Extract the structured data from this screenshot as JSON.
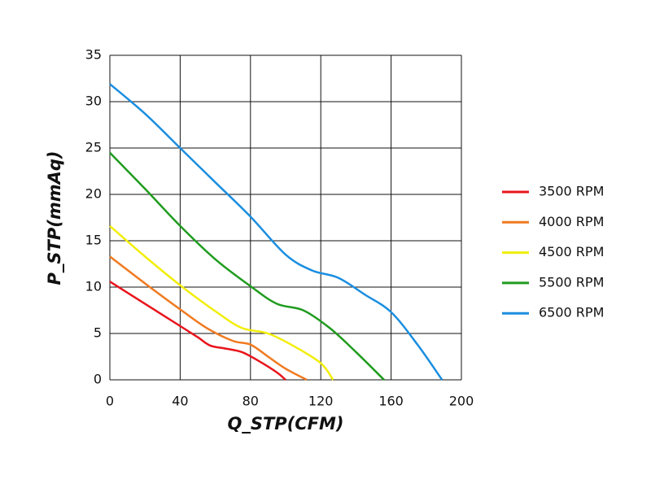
{
  "chart_data": {
    "type": "line",
    "xlabel": "Q_STP(CFM)",
    "ylabel": "P_STP(mmAq)",
    "xlim": [
      0,
      200
    ],
    "xticks": [
      0,
      40,
      80,
      120,
      160,
      200
    ],
    "ylim": [
      0,
      35
    ],
    "yticks": [
      0,
      5,
      10,
      15,
      20,
      25,
      30,
      35
    ],
    "grid": true,
    "legend": "right",
    "series": [
      {
        "name": "3500 RPM",
        "color": "#e8141c",
        "x": [
          0,
          20,
          40,
          50,
          57,
          65,
          75,
          85,
          95,
          100
        ],
        "values": [
          10.6,
          8.2,
          5.8,
          4.6,
          3.7,
          3.4,
          3.0,
          2.0,
          0.8,
          0
        ]
      },
      {
        "name": "4000 RPM",
        "color": "#f07a20",
        "x": [
          0,
          20,
          40,
          55,
          70,
          80,
          90,
          100,
          112
        ],
        "values": [
          13.3,
          10.4,
          7.6,
          5.6,
          4.2,
          3.8,
          2.5,
          1.2,
          0
        ]
      },
      {
        "name": "4500 RPM",
        "color": "#f2ee0a",
        "x": [
          0,
          20,
          40,
          60,
          75,
          90,
          105,
          120,
          127
        ],
        "values": [
          16.6,
          13.3,
          10.2,
          7.4,
          5.6,
          5.0,
          3.6,
          1.8,
          0
        ]
      },
      {
        "name": "5500 RPM",
        "color": "#1f9c1f",
        "x": [
          0,
          20,
          40,
          60,
          80,
          95,
          110,
          125,
          140,
          156
        ],
        "values": [
          24.5,
          20.6,
          16.6,
          13.0,
          10.1,
          8.2,
          7.5,
          5.6,
          3.0,
          0
        ]
      },
      {
        "name": "6500 RPM",
        "color": "#1a8ee0",
        "x": [
          0,
          20,
          40,
          60,
          80,
          100,
          115,
          130,
          145,
          160,
          175,
          189
        ],
        "values": [
          31.9,
          28.7,
          25.0,
          21.3,
          17.6,
          13.5,
          11.8,
          11.0,
          9.2,
          7.3,
          3.8,
          0
        ]
      }
    ]
  }
}
